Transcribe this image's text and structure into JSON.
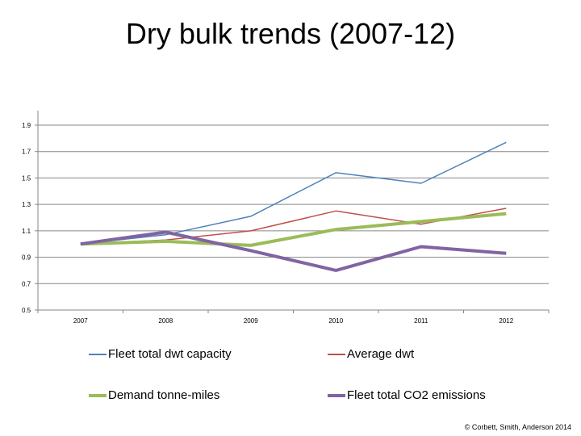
{
  "title": "Dry bulk trends (2007-12)",
  "copyright": "© Corbett, Smith, Anderson 2014",
  "colors": {
    "fleet_capacity": "#4f81bd",
    "average_dwt": "#c0504d",
    "demand": "#9bbb59",
    "emissions": "#8064a2",
    "axis": "#868686",
    "grid": "#868686"
  },
  "chart_data": {
    "type": "line",
    "title": "Dry bulk trends (2007-12)",
    "xlabel": "",
    "ylabel": "",
    "categories": [
      "2007",
      "2008",
      "2009",
      "2010",
      "2011",
      "2012"
    ],
    "ylim": [
      0.5,
      1.9
    ],
    "yticks": [
      "0.5",
      "0.7",
      "0.9",
      "1.1",
      "1.3",
      "1.5",
      "1.7",
      "1.9"
    ],
    "grid": true,
    "legend_position": "bottom",
    "series": [
      {
        "name": "Fleet total dwt capacity",
        "values": [
          1.0,
          1.07,
          1.21,
          1.54,
          1.46,
          1.77
        ],
        "color_key": "fleet_capacity",
        "width": "thin"
      },
      {
        "name": "Average dwt",
        "values": [
          1.0,
          1.03,
          1.1,
          1.25,
          1.15,
          1.27
        ],
        "color_key": "average_dwt",
        "width": "thin"
      },
      {
        "name": "Demand tonne-miles",
        "values": [
          1.0,
          1.02,
          0.99,
          1.11,
          1.17,
          1.23
        ],
        "color_key": "demand",
        "width": "thick"
      },
      {
        "name": "Fleet total CO2 emissions",
        "values": [
          1.0,
          1.09,
          0.95,
          0.8,
          0.98,
          0.93
        ],
        "color_key": "emissions",
        "width": "thick"
      }
    ]
  }
}
